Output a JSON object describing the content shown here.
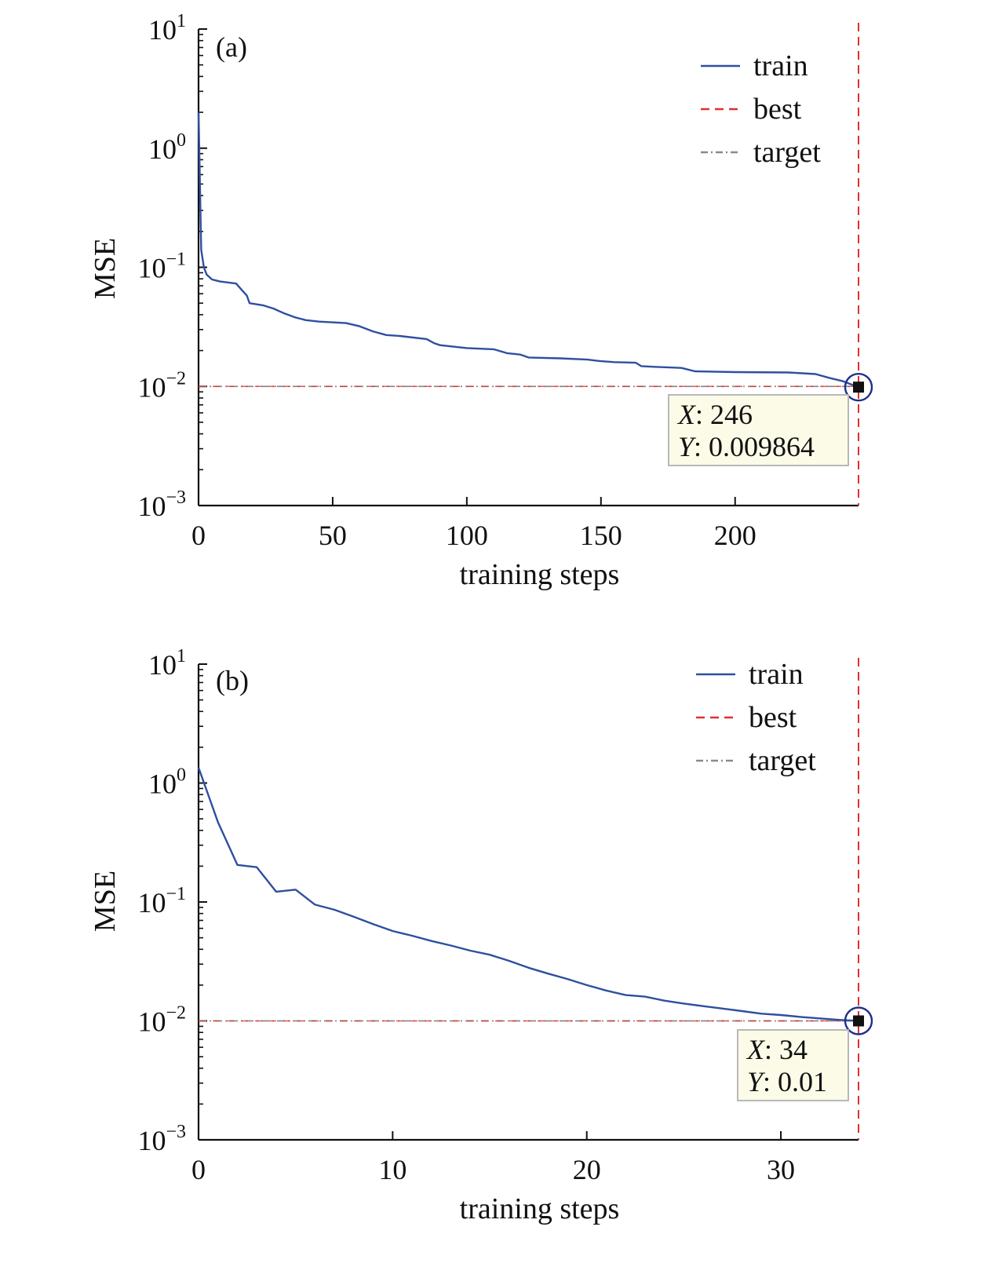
{
  "chart_data": [
    {
      "type": "line",
      "panel_label": "(a)",
      "xlabel": "training steps",
      "ylabel": "MSE",
      "y_scale": "log",
      "xlim": [
        0,
        246
      ],
      "ylim": [
        0.001,
        10
      ],
      "x_ticks": [
        0,
        50,
        100,
        150,
        200
      ],
      "y_ticks": [
        {
          "value": 10,
          "base": "10",
          "exp": "1"
        },
        {
          "value": 1,
          "base": "10",
          "exp": "0"
        },
        {
          "value": 0.1,
          "base": "10",
          "exp": "−1"
        },
        {
          "value": 0.01,
          "base": "10",
          "exp": "−2"
        },
        {
          "value": 0.001,
          "base": "10",
          "exp": "−3"
        }
      ],
      "legend": {
        "position": "top-right",
        "entries": [
          "train",
          "best",
          "target"
        ]
      },
      "series": [
        {
          "name": "train",
          "color": "#2f4f9f",
          "style": "solid",
          "points": [
            [
              0,
              2.0
            ],
            [
              1,
              0.14
            ],
            [
              2,
              0.1
            ],
            [
              3,
              0.087
            ],
            [
              5,
              0.079
            ],
            [
              8,
              0.076
            ],
            [
              14,
              0.073
            ],
            [
              16,
              0.065
            ],
            [
              18,
              0.058
            ],
            [
              19,
              0.05
            ],
            [
              24,
              0.048
            ],
            [
              28,
              0.045
            ],
            [
              32,
              0.041
            ],
            [
              36,
              0.038
            ],
            [
              40,
              0.036
            ],
            [
              45,
              0.035
            ],
            [
              55,
              0.034
            ],
            [
              60,
              0.032
            ],
            [
              65,
              0.029
            ],
            [
              70,
              0.027
            ],
            [
              75,
              0.0265
            ],
            [
              85,
              0.025
            ],
            [
              88,
              0.023
            ],
            [
              90,
              0.0222
            ],
            [
              100,
              0.021
            ],
            [
              110,
              0.0205
            ],
            [
              115,
              0.019
            ],
            [
              120,
              0.0185
            ],
            [
              123,
              0.0175
            ],
            [
              135,
              0.0172
            ],
            [
              145,
              0.0168
            ],
            [
              150,
              0.0163
            ],
            [
              155,
              0.016
            ],
            [
              163,
              0.0158
            ],
            [
              165,
              0.0148
            ],
            [
              170,
              0.0146
            ],
            [
              180,
              0.0143
            ],
            [
              185,
              0.0134
            ],
            [
              200,
              0.0132
            ],
            [
              220,
              0.0131
            ],
            [
              230,
              0.0127
            ],
            [
              235,
              0.0118
            ],
            [
              240,
              0.0111
            ],
            [
              246,
              0.009864
            ]
          ]
        },
        {
          "name": "best",
          "color": "#e03030",
          "style": "dashed",
          "x": 246
        },
        {
          "name": "target",
          "color": "#8a8a8a",
          "style": "dashdot",
          "y": 0.01
        }
      ],
      "best_marker": {
        "x": 246,
        "y": 0.009864
      },
      "datatip": {
        "x_key": "X",
        "x_value": ": 246",
        "y_key": "Y",
        "y_value": ": 0.009864"
      }
    },
    {
      "type": "line",
      "panel_label": "(b)",
      "xlabel": "training steps",
      "ylabel": "MSE",
      "y_scale": "log",
      "xlim": [
        0,
        34
      ],
      "ylim": [
        0.001,
        10
      ],
      "x_ticks": [
        0,
        10,
        20,
        30
      ],
      "y_ticks": [
        {
          "value": 10,
          "base": "10",
          "exp": "1"
        },
        {
          "value": 1,
          "base": "10",
          "exp": "0"
        },
        {
          "value": 0.1,
          "base": "10",
          "exp": "−1"
        },
        {
          "value": 0.01,
          "base": "10",
          "exp": "−2"
        },
        {
          "value": 0.001,
          "base": "10",
          "exp": "−3"
        }
      ],
      "legend": {
        "position": "top-right",
        "entries": [
          "train",
          "best",
          "target"
        ]
      },
      "series": [
        {
          "name": "train",
          "color": "#2f4f9f",
          "style": "solid",
          "points": [
            [
              0,
              1.35
            ],
            [
              1,
              0.47
            ],
            [
              2,
              0.205
            ],
            [
              3,
              0.196
            ],
            [
              4,
              0.122
            ],
            [
              5,
              0.127
            ],
            [
              6,
              0.095
            ],
            [
              7,
              0.086
            ],
            [
              8,
              0.075
            ],
            [
              9,
              0.065
            ],
            [
              10,
              0.057
            ],
            [
              11,
              0.052
            ],
            [
              12,
              0.047
            ],
            [
              13,
              0.043
            ],
            [
              14,
              0.039
            ],
            [
              15,
              0.036
            ],
            [
              16,
              0.032
            ],
            [
              17,
              0.028
            ],
            [
              18,
              0.025
            ],
            [
              19,
              0.0225
            ],
            [
              20,
              0.02
            ],
            [
              21,
              0.018
            ],
            [
              22,
              0.0165
            ],
            [
              23,
              0.016
            ],
            [
              24,
              0.0148
            ],
            [
              25,
              0.014
            ],
            [
              26,
              0.0133
            ],
            [
              27,
              0.0127
            ],
            [
              28,
              0.0121
            ],
            [
              29,
              0.0115
            ],
            [
              30,
              0.0112
            ],
            [
              31,
              0.0108
            ],
            [
              32,
              0.0105
            ],
            [
              33,
              0.0102
            ],
            [
              34,
              0.01
            ]
          ]
        },
        {
          "name": "best",
          "color": "#e03030",
          "style": "dashed",
          "x": 34
        },
        {
          "name": "target",
          "color": "#8a8a8a",
          "style": "dashdot",
          "y": 0.01
        }
      ],
      "best_marker": {
        "x": 34,
        "y": 0.01
      },
      "datatip": {
        "x_key": "X",
        "x_value": ": 34",
        "y_key": "Y",
        "y_value": ": 0.01"
      }
    }
  ]
}
